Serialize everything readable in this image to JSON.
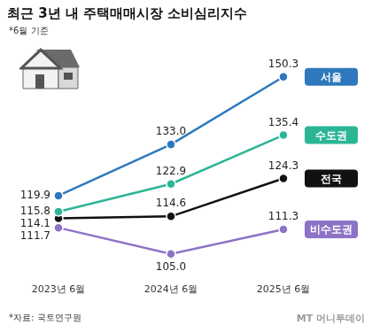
{
  "chart_data": {
    "type": "line",
    "title": "최근 3년 내 주택매매시장 소비심리지수",
    "subtitle": "*6월 기준",
    "source": "*자료: 국토연구원",
    "annotations": [
      "MT 머니투데이"
    ],
    "categories": [
      "2023년 6월",
      "2024년 6월",
      "2025년 6월"
    ],
    "series": [
      {
        "name": "서울",
        "color": "#2e78be",
        "values": [
          119.9,
          133.0,
          150.3
        ],
        "value_labels": [
          "119.9",
          "133.0",
          "150.3"
        ]
      },
      {
        "name": "수도권",
        "color": "#2bb596",
        "values": [
          115.8,
          122.9,
          135.4
        ],
        "value_labels": [
          "115.8",
          "122.9",
          "135.4"
        ]
      },
      {
        "name": "전국",
        "color": "#111111",
        "values": [
          114.1,
          114.6,
          124.3
        ],
        "value_labels": [
          "114.1",
          "114.6",
          "124.3"
        ]
      },
      {
        "name": "비수도권",
        "color": "#8c73c6",
        "values": [
          111.7,
          105.0,
          111.3
        ],
        "value_labels": [
          "111.7",
          "105.0",
          "111.3"
        ]
      }
    ],
    "ylim": [
      100,
      155
    ],
    "grid": false,
    "legend": "right",
    "data_labels": true,
    "tick_labels": "x",
    "marker": "circle"
  }
}
